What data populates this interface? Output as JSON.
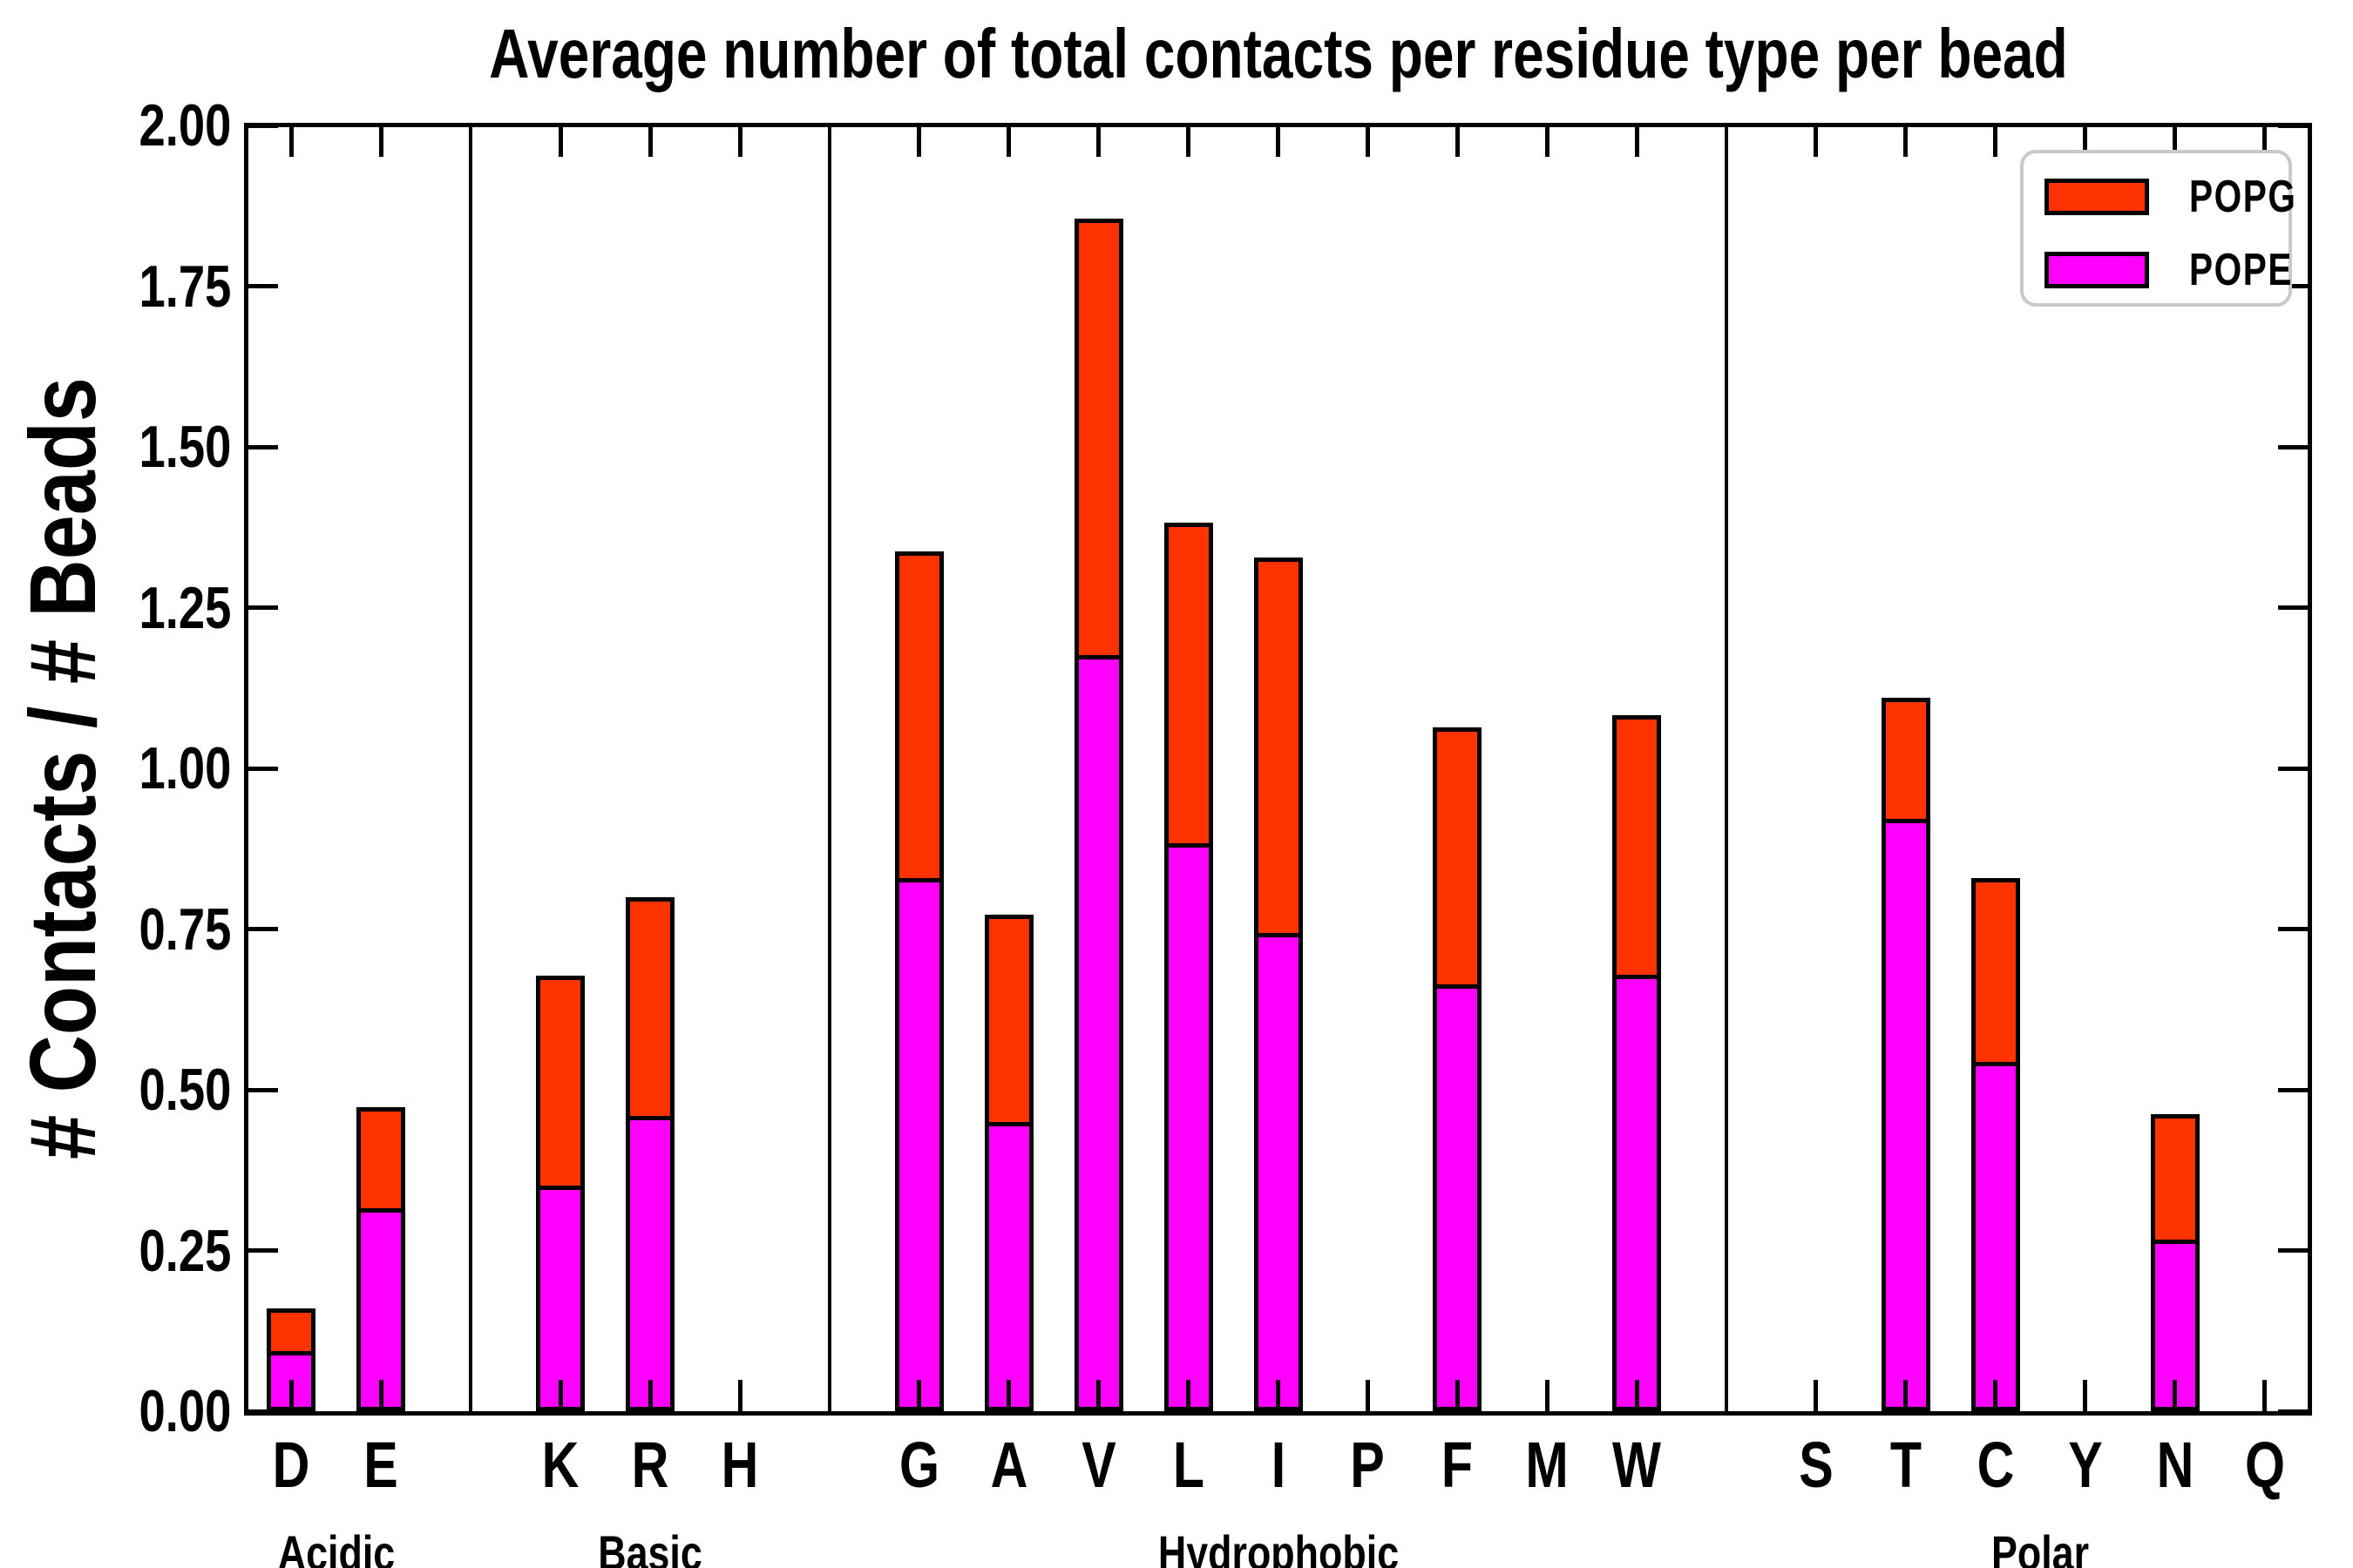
{
  "title": "Average number of total contacts per residue type per bead",
  "ylabel": "# Contacts / # Beads",
  "legend": [
    {
      "label": "POPG",
      "color": "#ff3300"
    },
    {
      "label": "POPE",
      "color": "#ff00ff"
    }
  ],
  "yticks": [
    "0.00",
    "0.25",
    "0.50",
    "0.75",
    "1.00",
    "1.25",
    "1.50",
    "1.75",
    "2.00"
  ],
  "chart_data": {
    "type": "bar",
    "stacked": true,
    "title": "Average number of total contacts per residue type per bead",
    "ylabel": "# Contacts / # Beads",
    "ylim": [
      0,
      2
    ],
    "grid": false,
    "legend_position": "upper right",
    "categories": [
      "D",
      "E",
      "K",
      "R",
      "H",
      "G",
      "A",
      "V",
      "L",
      "I",
      "P",
      "F",
      "M",
      "W",
      "S",
      "T",
      "C",
      "Y",
      "N",
      "Q"
    ],
    "groups": [
      {
        "label": "Acidic",
        "residues": [
          "D",
          "E"
        ]
      },
      {
        "label": "Basic",
        "residues": [
          "K",
          "R",
          "H"
        ]
      },
      {
        "label": "Hydrophobic",
        "residues": [
          "G",
          "A",
          "V",
          "L",
          "I",
          "P",
          "F",
          "M",
          "W"
        ]
      },
      {
        "label": "Polar",
        "residues": [
          "S",
          "T",
          "C",
          "Y",
          "N",
          "Q"
        ]
      }
    ],
    "series": [
      {
        "name": "POPE",
        "color": "#ff00ff",
        "values": [
          0.087,
          0.309,
          0.344,
          0.453,
          0,
          0.822,
          0.443,
          1.169,
          0.877,
          0.737,
          0,
          0.657,
          0,
          0.672,
          0,
          0.915,
          0.537,
          0,
          0.26,
          0
        ]
      },
      {
        "name": "POPG",
        "color": "#ff3300",
        "values": [
          0.073,
          0.164,
          0.334,
          0.347,
          0,
          0.515,
          0.329,
          0.686,
          0.505,
          0.591,
          0,
          0.407,
          0,
          0.411,
          0,
          0.195,
          0.292,
          0,
          0.202,
          0
        ]
      }
    ],
    "totals": [
      0.16,
      0.473,
      0.678,
      0.8,
      0,
      1.337,
      0.772,
      1.855,
      1.382,
      1.328,
      0,
      1.064,
      0,
      1.083,
      0,
      1.11,
      0.829,
      0,
      0.462,
      0
    ]
  }
}
